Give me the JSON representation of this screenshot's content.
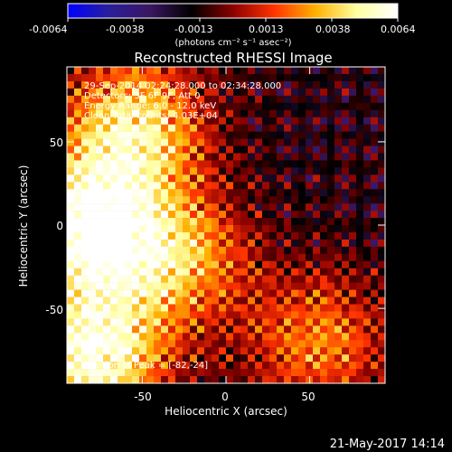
{
  "colorbar": {
    "ticks": [
      "-0.0064",
      "-0.0038",
      "-0.0013",
      "0.0013",
      "0.0038",
      "0.0064"
    ],
    "units": "(photons cm⁻² s⁻¹ asec⁻²)",
    "colors": [
      "#0000ff",
      "#2a1f9c",
      "#3a1660",
      "#000000",
      "#8a0000",
      "#ff3300",
      "#ffb000",
      "#ffffa0",
      "#ffffff"
    ]
  },
  "chart_data": {
    "type": "heatmap",
    "title": "Reconstructed RHESSI Image",
    "xlabel": "Heliocentric X (arcsec)",
    "ylabel": "Heliocentric Y (arcsec)",
    "xlim": [
      -95,
      95
    ],
    "ylim": [
      -95,
      95
    ],
    "xticks": [
      "-50",
      "0",
      "50"
    ],
    "yticks": [
      "50",
      "0",
      "-50"
    ],
    "xtick_values": [
      -50,
      0,
      50
    ],
    "ytick_values": [
      50,
      0,
      -50
    ],
    "clim": [
      -0.0064,
      0.0064
    ],
    "annotations": [
      "29-Sep-2014 02:24:28.000 to 02:34:28.000",
      "Detectors: 3F 6F 9F, Att 0",
      "Energy Range: 6.0 - 12.0 keV",
      "Clean     Total counts: 4.03E+04"
    ],
    "peak_label": "Position of Peak = [-82,-24]",
    "peak": [
      -82,
      -24
    ],
    "hot_regions": [
      {
        "x": -85,
        "y": 0,
        "level": 0.0064
      },
      {
        "x": -80,
        "y": -80,
        "level": 0.006
      },
      {
        "x": -55,
        "y": 60,
        "level": 0.0045
      },
      {
        "x": -30,
        "y": -20,
        "level": 0.0035
      },
      {
        "x": 55,
        "y": -70,
        "level": 0.0025
      }
    ],
    "background_level": -0.0015
  },
  "footer": {
    "timestamp": "21-May-2017 14:14"
  }
}
